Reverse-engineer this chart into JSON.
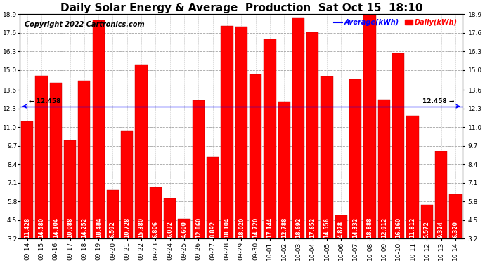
{
  "title": "Daily Solar Energy & Average  Production  Sat Oct 15  18:10",
  "copyright": "Copyright 2022 Cartronics.com",
  "legend_average": "Average(kWh)",
  "legend_daily": "Daily(kWh)",
  "average_value": 12.458,
  "average_label_left": "← 12.458",
  "average_label_right": "12.458 →",
  "categories": [
    "09-14",
    "09-15",
    "09-16",
    "09-17",
    "09-18",
    "09-19",
    "09-20",
    "09-21",
    "09-22",
    "09-23",
    "09-24",
    "09-25",
    "09-26",
    "09-27",
    "09-28",
    "09-29",
    "09-30",
    "10-01",
    "10-02",
    "10-03",
    "10-04",
    "10-05",
    "10-06",
    "10-07",
    "10-08",
    "10-09",
    "10-10",
    "10-11",
    "10-12",
    "10-13",
    "10-14"
  ],
  "values": [
    11.428,
    14.58,
    14.104,
    10.088,
    14.252,
    18.484,
    6.592,
    10.728,
    15.38,
    6.806,
    6.032,
    4.6,
    12.86,
    8.892,
    18.104,
    18.02,
    14.72,
    17.144,
    12.788,
    18.692,
    17.652,
    14.556,
    4.828,
    14.332,
    18.888,
    12.912,
    16.16,
    11.812,
    5.572,
    9.324,
    6.32
  ],
  "bar_color": "#FF0000",
  "bar_edge_color": "#BB0000",
  "average_line_color": "#0000FF",
  "title_color": "#000000",
  "copyright_color": "#000000",
  "legend_avg_color": "#0000FF",
  "legend_daily_color": "#FF0000",
  "grid_color": "#999999",
  "background_color": "#FFFFFF",
  "ylim_min": 3.2,
  "ylim_max": 18.9,
  "yticks": [
    3.2,
    4.5,
    5.8,
    7.1,
    8.4,
    9.7,
    11.0,
    12.3,
    13.6,
    15.0,
    16.3,
    17.6,
    18.9
  ],
  "title_fontsize": 11,
  "copyright_fontsize": 7,
  "tick_fontsize": 6.5,
  "value_fontsize": 5.5
}
